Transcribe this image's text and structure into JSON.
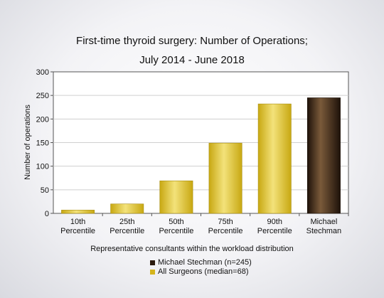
{
  "chart_data": {
    "type": "bar",
    "title_line1": "First-time thyroid surgery: Number of Operations;",
    "title_line2": "July 2014 - June 2018",
    "xlabel": "Representative consultants within the workload distribution",
    "ylabel": "Number of operations",
    "ylim": [
      0,
      300
    ],
    "yticks": [
      0,
      50,
      100,
      150,
      200,
      250,
      300
    ],
    "grid": true,
    "categories": [
      [
        "10th",
        "Percentile"
      ],
      [
        "25th",
        "Percentile"
      ],
      [
        "50th",
        "Percentile"
      ],
      [
        "75th",
        "Percentile"
      ],
      [
        "90th",
        "Percentile"
      ],
      [
        "Michael",
        "Stechman"
      ]
    ],
    "values": [
      7,
      20,
      69,
      149,
      232,
      245
    ],
    "bar_series": [
      "all",
      "all",
      "all",
      "all",
      "all",
      "surgeon"
    ],
    "legend": [
      {
        "key": "surgeon",
        "label": "Michael Stechman (n=245)",
        "color": "#2b1a0e"
      },
      {
        "key": "all",
        "label": "All Surgeons (median=68)",
        "color": "#d4b41c"
      }
    ],
    "colors": {
      "all_light": "#f3e27a",
      "all_dark": "#c8a812",
      "surgeon_light": "#7a5a3a",
      "surgeon_dark": "#1e120a"
    }
  }
}
